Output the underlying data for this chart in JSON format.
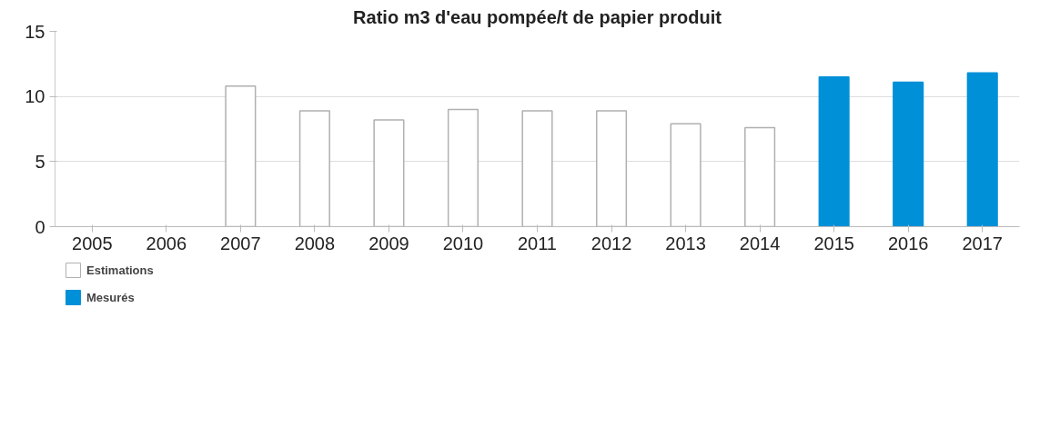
{
  "chart_data": {
    "type": "bar",
    "title": "Ratio m3 d'eau pompée/t de papier produit",
    "categories": [
      "2005",
      "2006",
      "2007",
      "2008",
      "2009",
      "2010",
      "2011",
      "2012",
      "2013",
      "2014",
      "2015",
      "2016",
      "2017"
    ],
    "series": [
      {
        "name": "Estimations",
        "color": "#ffffff",
        "values": [
          null,
          null,
          10.8,
          8.9,
          8.2,
          9.0,
          8.9,
          8.9,
          7.9,
          7.6,
          null,
          null,
          null
        ]
      },
      {
        "name": "Mesurés",
        "color": "#0090d8",
        "values": [
          null,
          null,
          null,
          null,
          null,
          null,
          null,
          null,
          null,
          null,
          11.5,
          11.1,
          11.8
        ]
      }
    ],
    "ylim": [
      0,
      15
    ],
    "yticks": [
      0,
      5,
      10,
      15
    ],
    "grid": "y",
    "legend": "bottom left"
  }
}
